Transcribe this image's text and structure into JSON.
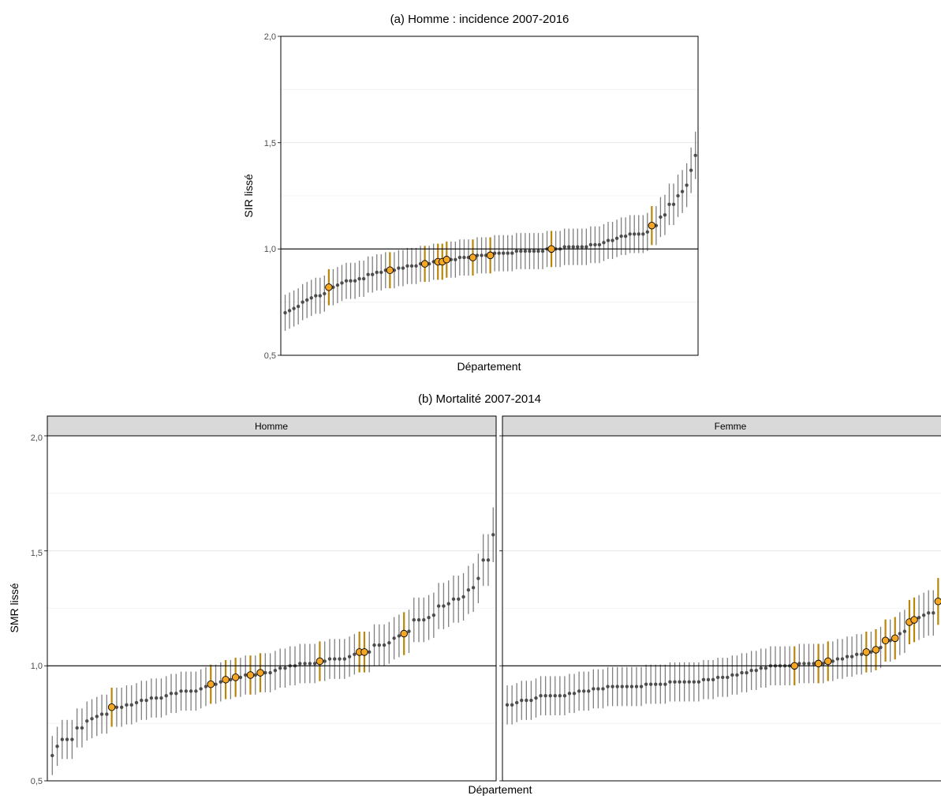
{
  "figure_titles": {
    "a": "(a) Homme : incidence 2007-2016",
    "b": "(b) Mortalité 2007-2014"
  },
  "chart_data": [
    {
      "id": "a",
      "type": "scatter",
      "subtype": "ranked point estimates with 95% interval bars",
      "title": "(a) Homme : incidence 2007-2016",
      "xlabel": "Département",
      "ylabel": "SIR lissé",
      "ylim": [
        0.5,
        2.0
      ],
      "yticks": [
        "0,5",
        "1,0",
        "1,5",
        "2,0"
      ],
      "reference_line": 1.0,
      "grid": "horizontal major and minor",
      "highlight_color": "#f5a623",
      "highlight_bar_color": "#b8860b",
      "point_color": "#4d4d4d",
      "panels": [
        {
          "name": "",
          "values": [
            0.7,
            0.71,
            0.72,
            0.73,
            0.75,
            0.76,
            0.77,
            0.78,
            0.78,
            0.79,
            0.82,
            0.82,
            0.83,
            0.84,
            0.85,
            0.85,
            0.85,
            0.86,
            0.86,
            0.88,
            0.88,
            0.89,
            0.89,
            0.9,
            0.9,
            0.9,
            0.91,
            0.91,
            0.92,
            0.92,
            0.92,
            0.93,
            0.93,
            0.93,
            0.94,
            0.94,
            0.94,
            0.95,
            0.95,
            0.95,
            0.96,
            0.96,
            0.96,
            0.96,
            0.97,
            0.97,
            0.97,
            0.97,
            0.98,
            0.98,
            0.98,
            0.98,
            0.98,
            0.99,
            0.99,
            0.99,
            0.99,
            0.99,
            0.99,
            0.99,
            1.0,
            1.0,
            1.0,
            1.0,
            1.01,
            1.01,
            1.01,
            1.01,
            1.01,
            1.01,
            1.02,
            1.02,
            1.02,
            1.03,
            1.04,
            1.04,
            1.05,
            1.06,
            1.06,
            1.07,
            1.07,
            1.07,
            1.07,
            1.08,
            1.11,
            1.11,
            1.15,
            1.16,
            1.21,
            1.21,
            1.25,
            1.27,
            1.3,
            1.37,
            1.44
          ],
          "highlighted_indices": [
            10,
            24,
            32,
            35,
            36,
            37,
            43,
            47,
            61,
            84
          ]
        }
      ]
    },
    {
      "id": "b",
      "type": "scatter",
      "subtype": "ranked point estimates with 95% interval bars, faceted",
      "title": "(b) Mortalité 2007-2014",
      "xlabel": "Département",
      "ylabel": "SMR lissé",
      "ylim": [
        0.5,
        2.0
      ],
      "yticks": [
        "0,5",
        "1,0",
        "1,5",
        "2,0"
      ],
      "reference_line": 1.0,
      "grid": "horizontal major and minor",
      "highlight_color": "#f5a623",
      "highlight_bar_color": "#b8860b",
      "point_color": "#4d4d4d",
      "panels": [
        {
          "name": "Homme",
          "values": [
            0.61,
            0.65,
            0.68,
            0.68,
            0.68,
            0.73,
            0.73,
            0.76,
            0.77,
            0.78,
            0.79,
            0.79,
            0.82,
            0.82,
            0.82,
            0.83,
            0.83,
            0.84,
            0.85,
            0.85,
            0.86,
            0.86,
            0.86,
            0.87,
            0.88,
            0.88,
            0.89,
            0.89,
            0.89,
            0.89,
            0.9,
            0.91,
            0.92,
            0.92,
            0.93,
            0.94,
            0.94,
            0.95,
            0.95,
            0.96,
            0.96,
            0.96,
            0.97,
            0.97,
            0.97,
            0.98,
            0.99,
            0.99,
            1.0,
            1.0,
            1.01,
            1.01,
            1.01,
            1.01,
            1.02,
            1.02,
            1.03,
            1.03,
            1.03,
            1.03,
            1.04,
            1.05,
            1.06,
            1.06,
            1.06,
            1.09,
            1.09,
            1.09,
            1.1,
            1.12,
            1.13,
            1.14,
            1.15,
            1.2,
            1.2,
            1.2,
            1.21,
            1.22,
            1.26,
            1.26,
            1.27,
            1.29,
            1.29,
            1.3,
            1.33,
            1.34,
            1.38,
            1.46,
            1.46,
            1.57
          ],
          "highlighted_indices": [
            12,
            32,
            35,
            37,
            40,
            42,
            54,
            62,
            63,
            71
          ]
        },
        {
          "name": "Femme",
          "values": [
            0.83,
            0.83,
            0.84,
            0.85,
            0.85,
            0.85,
            0.86,
            0.87,
            0.87,
            0.87,
            0.87,
            0.87,
            0.87,
            0.88,
            0.88,
            0.89,
            0.89,
            0.89,
            0.9,
            0.9,
            0.9,
            0.91,
            0.91,
            0.91,
            0.91,
            0.91,
            0.91,
            0.91,
            0.91,
            0.92,
            0.92,
            0.92,
            0.92,
            0.92,
            0.93,
            0.93,
            0.93,
            0.93,
            0.93,
            0.93,
            0.93,
            0.94,
            0.94,
            0.94,
            0.95,
            0.95,
            0.95,
            0.96,
            0.96,
            0.97,
            0.97,
            0.98,
            0.98,
            0.99,
            0.99,
            1.0,
            1.0,
            1.0,
            1.0,
            1.0,
            1.0,
            1.01,
            1.01,
            1.01,
            1.01,
            1.01,
            1.01,
            1.02,
            1.02,
            1.03,
            1.03,
            1.04,
            1.04,
            1.05,
            1.05,
            1.06,
            1.06,
            1.07,
            1.08,
            1.11,
            1.11,
            1.12,
            1.14,
            1.15,
            1.19,
            1.2,
            1.21,
            1.22,
            1.23,
            1.23,
            1.28
          ],
          "highlighted_indices": [
            60,
            65,
            67,
            75,
            77,
            79,
            81,
            84,
            85,
            90
          ]
        }
      ]
    }
  ]
}
